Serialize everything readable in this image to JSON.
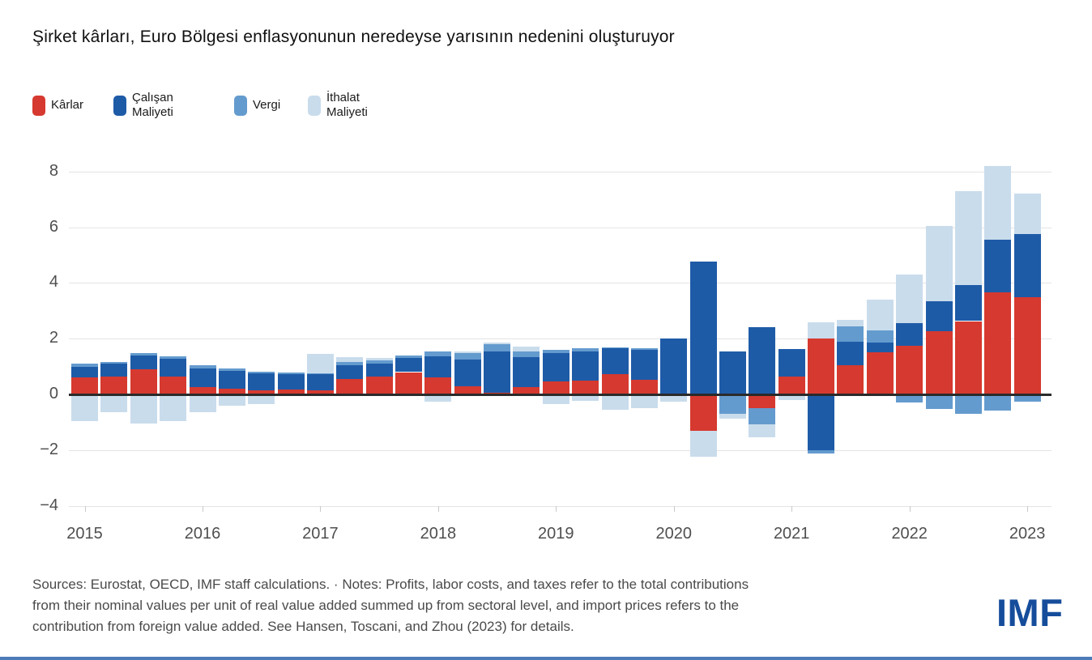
{
  "title": "Şirket kârları, Euro Bölgesi enflasyonunun neredeyse yarısının nedenini oluşturuyor",
  "legend": [
    {
      "label": "Kârlar",
      "color": "#d6392f"
    },
    {
      "label": "Çalışan\nMaliyeti",
      "color": "#1e5ba7"
    },
    {
      "label": "Vergi",
      "color": "#649bce"
    },
    {
      "label": "İthalat\nMaliyeti",
      "color": "#c9dcec"
    }
  ],
  "chart_data": {
    "type": "bar",
    "subtype": "stacked-quarterly",
    "x": [
      "2015Q1",
      "2015Q2",
      "2015Q3",
      "2015Q4",
      "2016Q1",
      "2016Q2",
      "2016Q3",
      "2016Q4",
      "2017Q1",
      "2017Q2",
      "2017Q3",
      "2017Q4",
      "2018Q1",
      "2018Q2",
      "2018Q3",
      "2018Q4",
      "2019Q1",
      "2019Q2",
      "2019Q3",
      "2019Q4",
      "2020Q1",
      "2020Q2",
      "2020Q3",
      "2020Q4",
      "2021Q1",
      "2021Q2",
      "2021Q3",
      "2021Q4",
      "2022Q1",
      "2022Q2",
      "2022Q3",
      "2022Q4",
      "2023Q1"
    ],
    "series": [
      {
        "name": "Kârlar",
        "key": "karlar",
        "color": "#d6392f",
        "values": [
          0.6,
          0.65,
          0.9,
          0.65,
          0.27,
          0.2,
          0.15,
          0.17,
          0.15,
          0.55,
          0.65,
          0.8,
          0.6,
          0.3,
          0.07,
          0.25,
          0.46,
          0.5,
          0.72,
          0.52,
          -0.07,
          -1.3,
          0,
          -0.48,
          0.65,
          2.0,
          1.05,
          1.5,
          1.74,
          2.26,
          2.63,
          3.67,
          3.5
        ]
      },
      {
        "name": "Çalışan Maliyeti",
        "key": "calisan-maliyeti",
        "color": "#1e5ba7",
        "values": [
          0.4,
          0.45,
          0.5,
          0.63,
          0.67,
          0.65,
          0.6,
          0.55,
          0.57,
          0.5,
          0.45,
          0.5,
          0.76,
          0.95,
          1.48,
          1.1,
          1.02,
          1.04,
          0.93,
          1.07,
          2.02,
          4.78,
          1.54,
          2.41,
          0.97,
          -2.0,
          0.85,
          0.37,
          0.83,
          1.08,
          1.3,
          1.88,
          2.25
        ]
      },
      {
        "name": "Vergi",
        "key": "vergi",
        "color": "#649bce",
        "values": [
          0.1,
          0.07,
          0.08,
          0.1,
          0.1,
          0.09,
          0.07,
          0.07,
          0.03,
          0.1,
          0.12,
          0.1,
          0.18,
          0.22,
          0.24,
          0.19,
          0.12,
          0.13,
          0.04,
          0.08,
          0,
          0,
          -0.7,
          -0.6,
          0,
          -0.13,
          0.55,
          0.44,
          -0.3,
          -0.52,
          -0.69,
          -0.59,
          -0.25
        ]
      },
      {
        "name": "İthalat Maliyeti",
        "key": "ithalat-maliyeti",
        "color": "#c9dcec",
        "values": [
          -0.95,
          -0.65,
          -1.05,
          -0.95,
          -0.65,
          -0.4,
          -0.35,
          0,
          0.7,
          0.2,
          0.08,
          0,
          -0.25,
          0.07,
          0.07,
          0.19,
          -0.35,
          -0.22,
          -0.55,
          -0.5,
          -0.2,
          -0.95,
          -0.18,
          -0.45,
          -0.2,
          0.58,
          0.22,
          1.08,
          1.74,
          2.7,
          3.38,
          2.65,
          1.45
        ]
      }
    ],
    "ylim": [
      -4,
      8
    ],
    "yticks": [
      {
        "v": 8,
        "label": "8"
      },
      {
        "v": 6,
        "label": "6"
      },
      {
        "v": 4,
        "label": "4"
      },
      {
        "v": 2,
        "label": "2"
      },
      {
        "v": 0,
        "label": "0"
      },
      {
        "v": -2,
        "label": "−2"
      },
      {
        "v": -4,
        "label": "−4"
      }
    ],
    "year_labels": [
      "2015",
      "2016",
      "2017",
      "2018",
      "2019",
      "2020",
      "2021",
      "2022",
      "2023"
    ],
    "grid": "horizontal",
    "legend_position": "top-left"
  },
  "footer": {
    "lines": [
      "Sources: Eurostat, OECD, IMF staff calculations. · Notes: Profits, labor costs, and taxes refer to the total contributions",
      "from their nominal values per unit of real value added summed up from sectoral level, and import prices refers to the",
      "contribution from foreign value added. See Hansen, Toscani, and Zhou (2023) for details."
    ]
  },
  "logo": {
    "text": "IMF"
  }
}
